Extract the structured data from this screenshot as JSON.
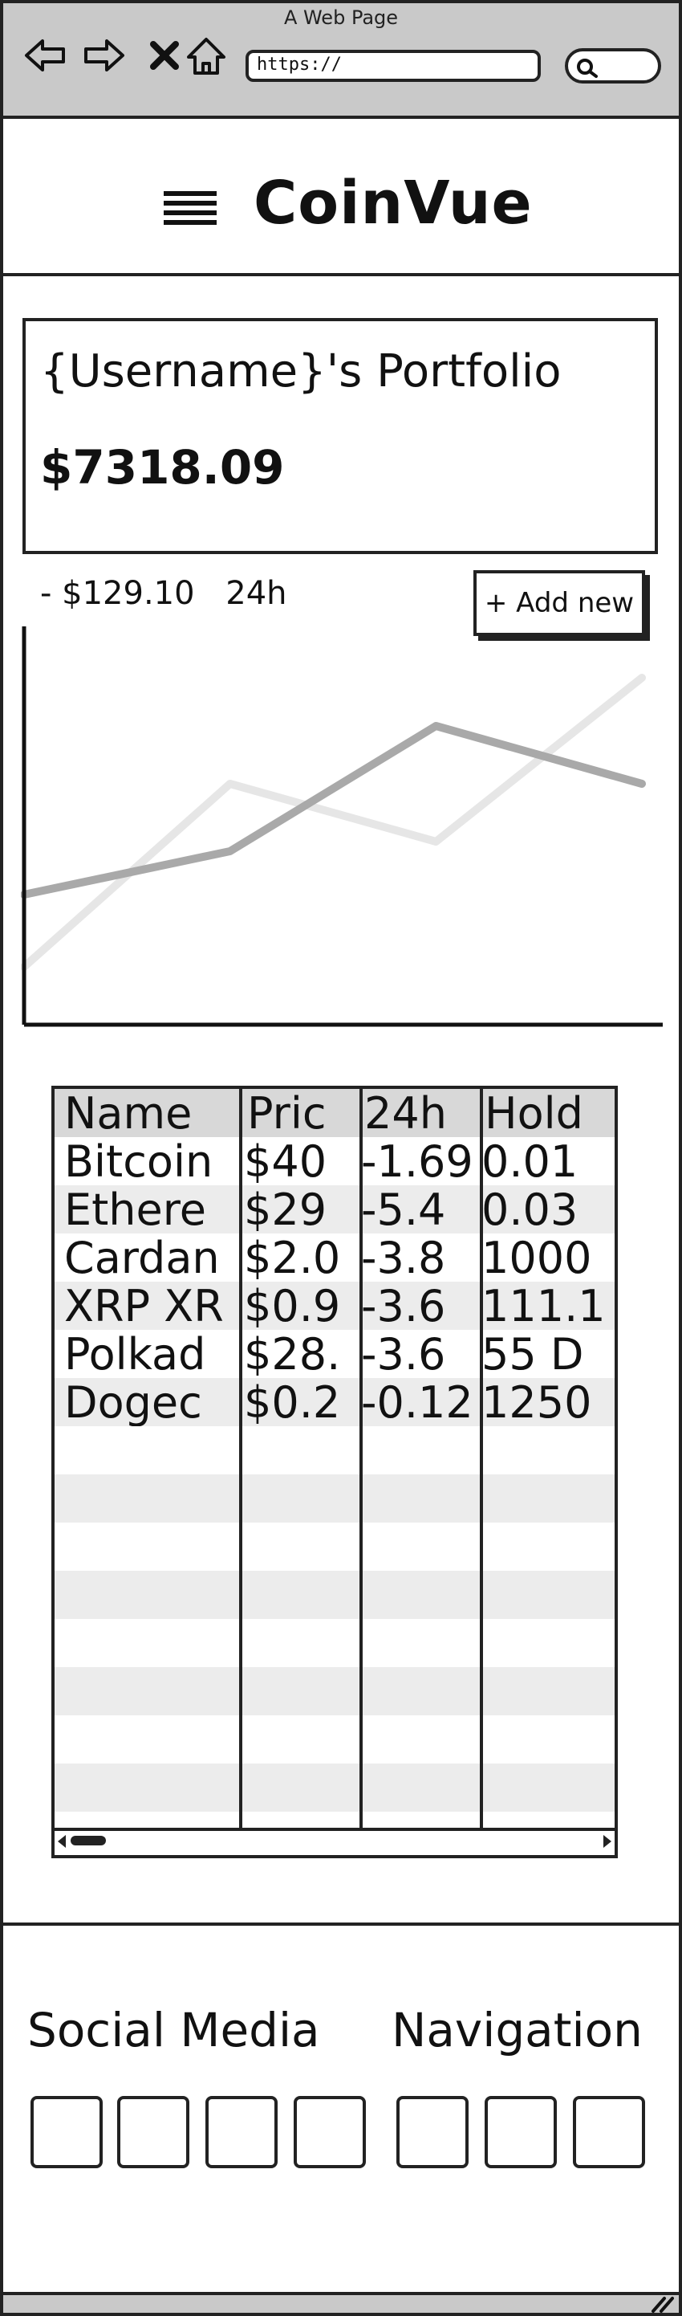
{
  "window": {
    "title": "A Web Page",
    "url": "https://"
  },
  "header": {
    "app_title": "CoinVue"
  },
  "portfolio": {
    "title": "{Username}'s Portfolio",
    "value": "$7318.09",
    "change": "- $129.10",
    "period": "24h",
    "add_new_label": "+ Add new"
  },
  "chart_data": {
    "type": "line",
    "x": [
      0,
      1,
      2,
      3
    ],
    "series": [
      {
        "values": [
          1.2,
          5.0,
          3.8,
          7.2
        ],
        "color": "#e6e6e6"
      },
      {
        "values": [
          2.7,
          3.6,
          6.2,
          5.0
        ],
        "color": "#a9a9a9"
      }
    ],
    "xlim": [
      0,
      3
    ],
    "ylim": [
      0,
      8
    ],
    "grid": false,
    "title": "",
    "xlabel": "",
    "ylabel": ""
  },
  "table": {
    "columns": [
      "Name",
      "Pric",
      "24h",
      "Hold"
    ],
    "rows": [
      [
        "Bitcoin",
        "$40",
        "-1.69",
        "0.01"
      ],
      [
        "Ethere",
        "$29",
        "-5.4",
        "0.03"
      ],
      [
        "Cardan",
        "$2.0",
        "-3.8",
        "1000"
      ],
      [
        "XRP XR",
        "$0.9",
        "-3.6",
        "111.1"
      ],
      [
        "Polkad",
        "$28.",
        "-3.6",
        "55 D"
      ],
      [
        "Dogec",
        "$0.2",
        "-0.12",
        "1250"
      ]
    ]
  },
  "footer": {
    "social_title": "Social Media",
    "nav_title": "Navigation"
  }
}
